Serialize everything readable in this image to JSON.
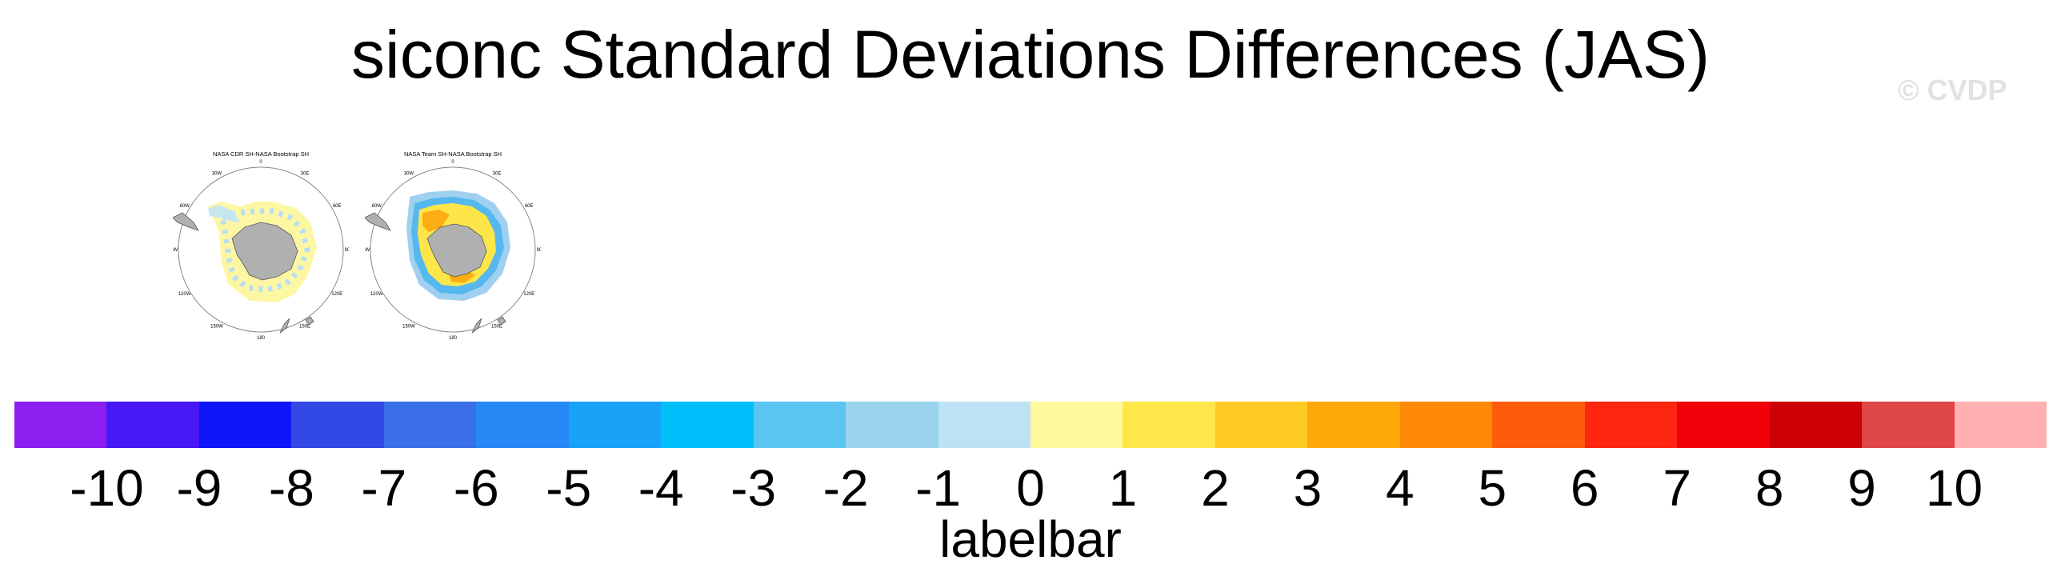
{
  "title": "siconc Standard Deviations Differences (JAS)",
  "watermark": "© CVDP",
  "panels": [
    {
      "title": "NASA CDR SH-NASA Bootstrap SH",
      "lon_labels": [
        "0",
        "30E",
        "60E",
        "90E",
        "120E",
        "150E",
        "180",
        "150W",
        "120W",
        "90W",
        "60W",
        "30W"
      ]
    },
    {
      "title": "NASA Team SH-NASA Bootstrap SH",
      "lon_labels": [
        "0",
        "30E",
        "60E",
        "90E",
        "120E",
        "150E",
        "180",
        "150W",
        "120W",
        "90W",
        "60W",
        "30W"
      ]
    }
  ],
  "colorbar": {
    "colors": [
      "#8a1ff0",
      "#4618f5",
      "#0f16f7",
      "#3249e6",
      "#3a6fe8",
      "#2688f5",
      "#18a2f8",
      "#00c0fb",
      "#5cc6f2",
      "#9bd3ee",
      "#bde2f4",
      "#fff99b",
      "#ffe74a",
      "#fecb24",
      "#fea80a",
      "#fe8908",
      "#fe5c0a",
      "#fe2610",
      "#f00008",
      "#cc0005",
      "#de4647",
      "#ffb0b1"
    ],
    "ticks": [
      "-10",
      "-9",
      "-8",
      "-7",
      "-6",
      "-5",
      "-4",
      "-3",
      "-2",
      "-1",
      "0",
      "1",
      "2",
      "3",
      "4",
      "5",
      "6",
      "7",
      "8",
      "9",
      "10"
    ],
    "label": "labelbar"
  }
}
